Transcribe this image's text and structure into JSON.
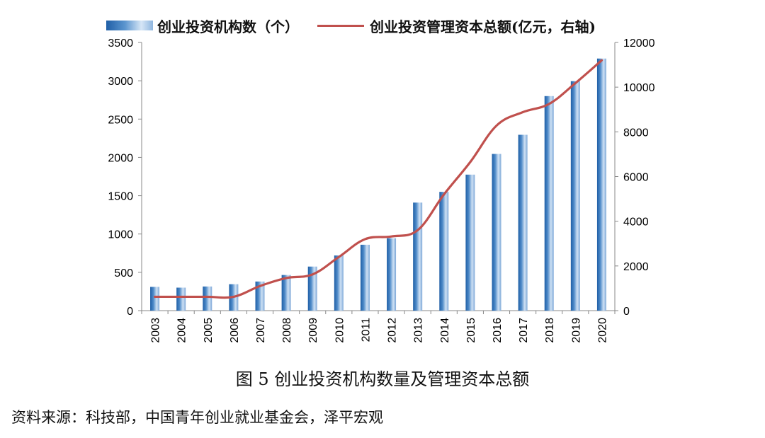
{
  "legend": {
    "bar_label": "创业投资机构数（个）",
    "line_label": "创业投资管理资本总额(亿元，右轴)"
  },
  "figure_title": "图 5  创业投资机构数量及管理资本总额",
  "source": "资料来源：科技部，中国青年创业就业基金会，泽平宏观",
  "colors": {
    "bar": "#4a86c5",
    "line": "#c0504d"
  },
  "chart_data": {
    "type": "bar",
    "title": "图 5  创业投资机构数量及管理资本总额",
    "categories": [
      "2003",
      "2004",
      "2005",
      "2006",
      "2007",
      "2008",
      "2009",
      "2010",
      "2011",
      "2012",
      "2013",
      "2014",
      "2015",
      "2016",
      "2017",
      "2018",
      "2019",
      "2020"
    ],
    "series": [
      {
        "name": "创业投资机构数（个）",
        "type": "bar",
        "axis": "left",
        "values": [
          310,
          300,
          315,
          345,
          380,
          465,
          575,
          720,
          860,
          945,
          1410,
          1550,
          1775,
          2045,
          2295,
          2800,
          2995,
          3290
        ]
      },
      {
        "name": "创业投资管理资本总额(亿元，右轴)",
        "type": "line",
        "axis": "right",
        "values": [
          620,
          620,
          620,
          620,
          1100,
          1460,
          1620,
          2400,
          3200,
          3320,
          3600,
          5200,
          6650,
          8280,
          8880,
          9250,
          10180,
          11200
        ]
      }
    ],
    "y_left": {
      "range": [
        0,
        3500
      ],
      "ticks": [
        "0",
        "500",
        "1000",
        "1500",
        "2000",
        "2500",
        "3000",
        "3500"
      ]
    },
    "y_right": {
      "range": [
        0,
        12000
      ],
      "ticks": [
        "0",
        "2000",
        "4000",
        "6000",
        "8000",
        "10000",
        "12000"
      ]
    },
    "grid": false,
    "legend_position": "top"
  }
}
